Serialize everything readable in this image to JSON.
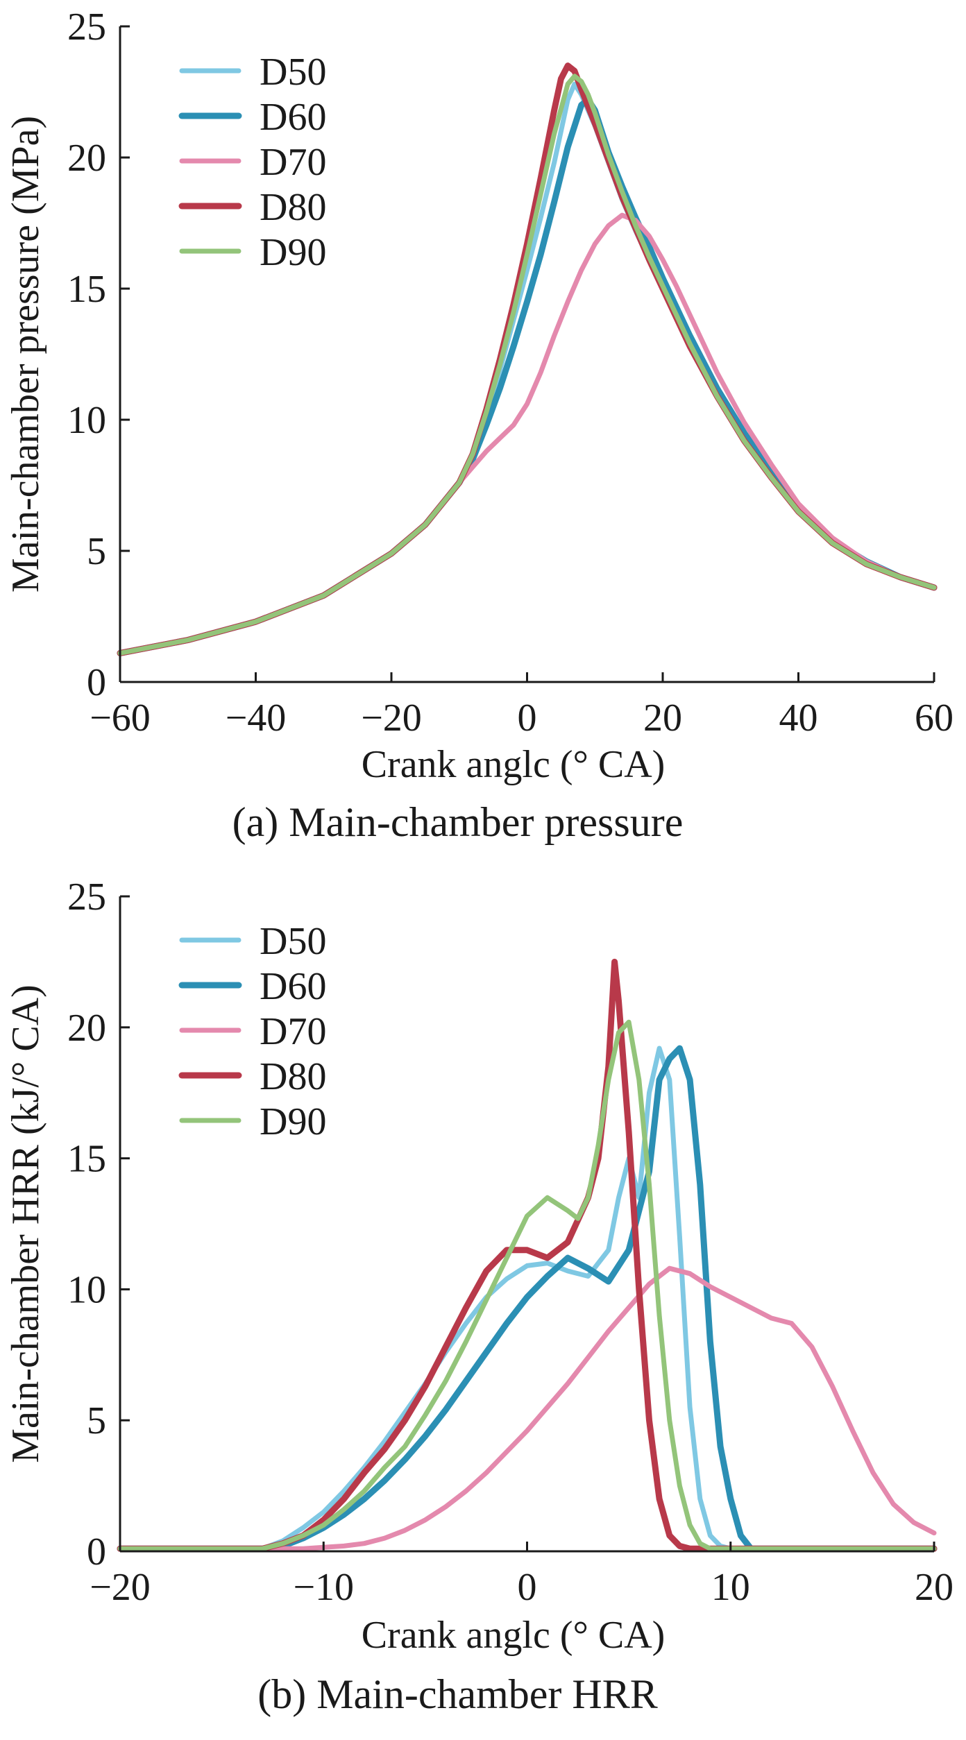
{
  "chart_data": [
    {
      "type": "line",
      "title": "(a) Main-chamber pressure",
      "xlabel": "Crank anglc (° CA)",
      "ylabel": "Main-chamber pressure (MPa)",
      "xlim": [
        -60,
        60
      ],
      "ylim": [
        0,
        25
      ],
      "xticks": [
        -60,
        -40,
        -20,
        0,
        20,
        40,
        60
      ],
      "yticks": [
        0,
        5,
        10,
        15,
        20,
        25
      ],
      "xtick_labels": [
        "−60",
        "−40",
        "−20",
        "0",
        "20",
        "40",
        "60"
      ],
      "ytick_labels": [
        "0",
        "5",
        "10",
        "15",
        "20",
        "25"
      ],
      "legend": "top-left",
      "grid": false,
      "series": [
        {
          "name": "D50",
          "color": "#7fc8e3",
          "x": [
            -60,
            -50,
            -40,
            -30,
            -20,
            -15,
            -10,
            -8,
            -6,
            -4,
            -2,
            0,
            2,
            4,
            5,
            6,
            7,
            8,
            10,
            12,
            14,
            16,
            18,
            20,
            24,
            28,
            32,
            36,
            40,
            45,
            50,
            55,
            60
          ],
          "y": [
            1.1,
            1.6,
            2.3,
            3.3,
            4.9,
            6.0,
            7.6,
            8.6,
            10.2,
            11.9,
            13.8,
            15.7,
            17.7,
            19.8,
            21.0,
            22.2,
            22.8,
            22.4,
            21.2,
            19.8,
            18.4,
            17.2,
            16.1,
            15.0,
            12.8,
            10.9,
            9.2,
            7.8,
            6.5,
            5.3,
            4.5,
            4.0,
            3.6
          ]
        },
        {
          "name": "D60",
          "color": "#2b8fb4",
          "x": [
            -60,
            -50,
            -40,
            -30,
            -20,
            -15,
            -10,
            -8,
            -6,
            -4,
            -2,
            0,
            2,
            4,
            6,
            8,
            9,
            10,
            12,
            14,
            16,
            18,
            20,
            24,
            28,
            32,
            36,
            40,
            45,
            50,
            55,
            60
          ],
          "y": [
            1.1,
            1.6,
            2.3,
            3.3,
            4.9,
            6.0,
            7.6,
            8.5,
            9.8,
            11.2,
            12.8,
            14.5,
            16.3,
            18.3,
            20.4,
            22.0,
            22.2,
            21.8,
            20.2,
            18.9,
            17.7,
            16.6,
            15.4,
            13.2,
            11.2,
            9.5,
            8.0,
            6.6,
            5.4,
            4.6,
            4.0,
            3.6
          ]
        },
        {
          "name": "D70",
          "color": "#e489ad",
          "x": [
            -60,
            -50,
            -40,
            -30,
            -20,
            -15,
            -10,
            -8,
            -6,
            -4,
            -2,
            0,
            2,
            4,
            6,
            8,
            10,
            12,
            14,
            16,
            18,
            20,
            22,
            24,
            28,
            32,
            36,
            40,
            45,
            50,
            55,
            60
          ],
          "y": [
            1.1,
            1.6,
            2.3,
            3.3,
            4.9,
            6.0,
            7.6,
            8.2,
            8.8,
            9.3,
            9.8,
            10.6,
            11.8,
            13.2,
            14.5,
            15.7,
            16.7,
            17.4,
            17.8,
            17.6,
            17.0,
            16.1,
            15.1,
            14.0,
            11.8,
            9.9,
            8.3,
            6.8,
            5.5,
            4.6,
            4.0,
            3.6
          ]
        },
        {
          "name": "D80",
          "color": "#b8394a",
          "x": [
            -60,
            -50,
            -40,
            -30,
            -20,
            -15,
            -10,
            -8,
            -6,
            -4,
            -2,
            0,
            2,
            4,
            5,
            6,
            7,
            8,
            10,
            12,
            14,
            16,
            18,
            20,
            24,
            28,
            32,
            36,
            40,
            45,
            50,
            55,
            60
          ],
          "y": [
            1.1,
            1.6,
            2.3,
            3.3,
            4.9,
            6.0,
            7.6,
            8.7,
            10.4,
            12.3,
            14.4,
            16.7,
            19.2,
            21.8,
            23.0,
            23.5,
            23.3,
            22.6,
            21.3,
            19.9,
            18.5,
            17.3,
            16.1,
            15.0,
            12.8,
            10.9,
            9.2,
            7.8,
            6.5,
            5.3,
            4.5,
            4.0,
            3.6
          ]
        },
        {
          "name": "D90",
          "color": "#93c47a",
          "x": [
            -60,
            -50,
            -40,
            -30,
            -20,
            -15,
            -10,
            -8,
            -6,
            -4,
            -2,
            0,
            2,
            4,
            6,
            7,
            8,
            9,
            10,
            12,
            14,
            16,
            18,
            20,
            24,
            28,
            32,
            36,
            40,
            45,
            50,
            55,
            60
          ],
          "y": [
            1.1,
            1.6,
            2.3,
            3.3,
            4.9,
            6.0,
            7.6,
            8.7,
            10.3,
            12.1,
            14.1,
            16.3,
            18.6,
            20.9,
            22.8,
            23.1,
            22.9,
            22.4,
            21.7,
            20.1,
            18.7,
            17.4,
            16.2,
            15.1,
            12.9,
            10.9,
            9.2,
            7.8,
            6.5,
            5.3,
            4.5,
            4.0,
            3.6
          ]
        }
      ]
    },
    {
      "type": "line",
      "title": "(b) Main-chamber HRR",
      "xlabel": "Crank anglc (° CA)",
      "ylabel": "Main-chamber HRR (kJ/° CA)",
      "xlim": [
        -20,
        20
      ],
      "ylim": [
        0,
        25
      ],
      "xticks": [
        -20,
        -10,
        0,
        10,
        20
      ],
      "yticks": [
        0,
        5,
        10,
        15,
        20,
        25
      ],
      "xtick_labels": [
        "−20",
        "−10",
        "0",
        "10",
        "20"
      ],
      "ytick_labels": [
        "0",
        "5",
        "10",
        "15",
        "20",
        "25"
      ],
      "legend": "top-left",
      "grid": false,
      "series": [
        {
          "name": "D50",
          "color": "#7fc8e3",
          "x": [
            -20,
            -13,
            -12,
            -11,
            -10,
            -9,
            -8,
            -7,
            -6,
            -5,
            -4,
            -3,
            -2,
            -1,
            0,
            1,
            2,
            3,
            4,
            4.5,
            5,
            5.5,
            6,
            6.5,
            7,
            7.5,
            8,
            8.5,
            9,
            9.5,
            10,
            20
          ],
          "y": [
            0.1,
            0.1,
            0.4,
            0.9,
            1.5,
            2.3,
            3.2,
            4.2,
            5.3,
            6.4,
            7.6,
            8.7,
            9.7,
            10.4,
            10.9,
            11.0,
            10.7,
            10.5,
            11.5,
            13.5,
            15.0,
            13.5,
            17.5,
            19.2,
            18.0,
            12.0,
            5.5,
            2.0,
            0.6,
            0.2,
            0.1,
            0.1
          ]
        },
        {
          "name": "D60",
          "color": "#2b8fb4",
          "x": [
            -20,
            -13,
            -12,
            -11,
            -10,
            -9,
            -8,
            -7,
            -6,
            -5,
            -4,
            -3,
            -2,
            -1,
            0,
            1,
            2,
            3,
            4,
            5,
            6,
            6.5,
            7,
            7.5,
            8,
            8.5,
            9,
            9.5,
            10,
            10.5,
            11,
            20
          ],
          "y": [
            0.1,
            0.1,
            0.2,
            0.5,
            0.9,
            1.4,
            2.0,
            2.7,
            3.5,
            4.4,
            5.4,
            6.5,
            7.6,
            8.7,
            9.7,
            10.5,
            11.2,
            10.8,
            10.3,
            11.5,
            14.5,
            18.0,
            18.8,
            19.2,
            18.0,
            14.0,
            8.0,
            4.0,
            2.0,
            0.6,
            0.1,
            0.1
          ]
        },
        {
          "name": "D70",
          "color": "#e489ad",
          "x": [
            -20,
            -11,
            -10,
            -9,
            -8,
            -7,
            -6,
            -5,
            -4,
            -3,
            -2,
            -1,
            0,
            1,
            2,
            3,
            4,
            5,
            6,
            7,
            8,
            9,
            10,
            11,
            12,
            13,
            14,
            15,
            16,
            17,
            18,
            19,
            20
          ],
          "y": [
            0.1,
            0.1,
            0.15,
            0.2,
            0.3,
            0.5,
            0.8,
            1.2,
            1.7,
            2.3,
            3.0,
            3.8,
            4.6,
            5.5,
            6.4,
            7.4,
            8.4,
            9.3,
            10.2,
            10.8,
            10.6,
            10.1,
            9.7,
            9.3,
            8.9,
            8.7,
            7.8,
            6.3,
            4.6,
            3.0,
            1.8,
            1.1,
            0.7
          ]
        },
        {
          "name": "D80",
          "color": "#b8394a",
          "x": [
            -20,
            -13,
            -12,
            -11,
            -10,
            -9,
            -8,
            -7,
            -6,
            -5,
            -4,
            -3,
            -2,
            -1,
            0,
            1,
            2,
            3,
            3.5,
            4,
            4.3,
            4.5,
            5,
            5.5,
            6,
            6.5,
            7,
            7.5,
            8,
            20
          ],
          "y": [
            0.1,
            0.1,
            0.3,
            0.6,
            1.2,
            2.0,
            3.0,
            3.9,
            5.0,
            6.3,
            7.8,
            9.3,
            10.7,
            11.5,
            11.5,
            11.2,
            11.8,
            13.5,
            15.0,
            18.5,
            22.5,
            21.0,
            16.0,
            10.0,
            5.0,
            2.0,
            0.6,
            0.2,
            0.1,
            0.1
          ]
        },
        {
          "name": "D90",
          "color": "#93c47a",
          "x": [
            -20,
            -13,
            -12,
            -11,
            -10,
            -9,
            -8,
            -7,
            -6,
            -5,
            -4,
            -3,
            -2,
            -1,
            0,
            1,
            2,
            2.5,
            3,
            3.5,
            4,
            4.5,
            5,
            5.5,
            6,
            6.5,
            7,
            7.5,
            8,
            8.5,
            9,
            20
          ],
          "y": [
            0.1,
            0.1,
            0.3,
            0.6,
            1.0,
            1.6,
            2.3,
            3.2,
            4.0,
            5.2,
            6.5,
            8.0,
            9.6,
            11.2,
            12.8,
            13.5,
            13.0,
            12.7,
            13.5,
            15.5,
            18.0,
            19.8,
            20.2,
            18.0,
            14.0,
            9.0,
            5.0,
            2.5,
            1.0,
            0.3,
            0.1,
            0.1
          ]
        }
      ]
    }
  ]
}
